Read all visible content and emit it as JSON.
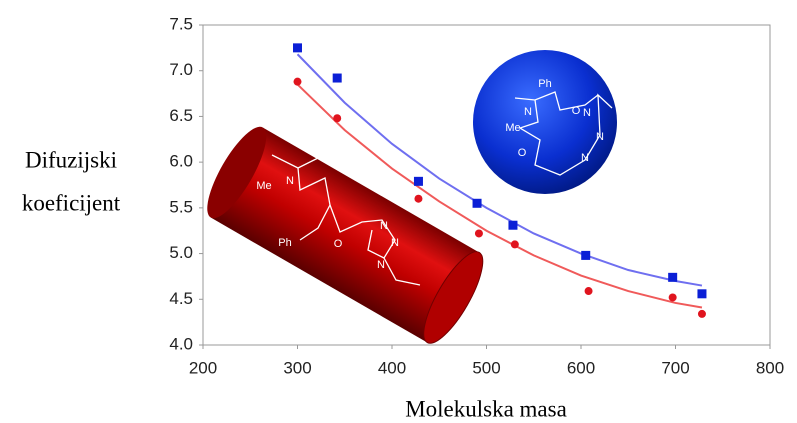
{
  "chart_data": {
    "type": "scatter",
    "xlabel": "Molekulska masa",
    "ylabel_lines": [
      "Difuzijski",
      "koeficijent"
    ],
    "xlim": [
      200,
      800
    ],
    "ylim": [
      4.0,
      7.5
    ],
    "xticks": [
      200,
      300,
      400,
      500,
      600,
      700,
      800
    ],
    "yticks": [
      {
        "value": 4.0,
        "label": "4.0"
      },
      4.5,
      {
        "value": 5.0,
        "label": "5.0"
      },
      5.5,
      {
        "value": 6.0,
        "label": "6.0"
      },
      6.5,
      {
        "value": 7.0,
        "label": "7.0"
      },
      7.5
    ],
    "grid": false,
    "series": [
      {
        "color": "#0b1fd6",
        "marker": "square",
        "x": [
          300,
          342,
          428,
          490,
          528,
          605,
          697,
          728
        ],
        "values": [
          7.25,
          6.92,
          5.79,
          5.55,
          5.31,
          4.98,
          4.74,
          4.56
        ]
      },
      {
        "color": "#e0141e",
        "marker": "circle",
        "x": [
          300,
          342,
          428,
          492,
          530,
          608,
          697,
          728
        ],
        "values": [
          6.88,
          6.48,
          5.6,
          5.22,
          5.1,
          4.59,
          4.52,
          4.34
        ]
      },
      {
        "color": "#6f6ff0",
        "marker": "line",
        "x": [
          300,
          350,
          400,
          450,
          500,
          550,
          600,
          650,
          700,
          728
        ],
        "values": [
          7.18,
          6.65,
          6.2,
          5.82,
          5.5,
          5.22,
          5.0,
          4.82,
          4.7,
          4.65
        ]
      },
      {
        "color": "#f05a5a",
        "marker": "line",
        "x": [
          300,
          350,
          400,
          450,
          500,
          550,
          600,
          650,
          700,
          728
        ],
        "values": [
          6.85,
          6.35,
          5.93,
          5.57,
          5.25,
          4.98,
          4.76,
          4.59,
          4.46,
          4.41
        ]
      }
    ],
    "annotations": [
      "O",
      "Me",
      "N",
      "Ph",
      "O",
      "N",
      "N",
      "N",
      "Ph",
      "O",
      "N",
      "Me",
      "O",
      "N",
      "N",
      "N"
    ]
  }
}
